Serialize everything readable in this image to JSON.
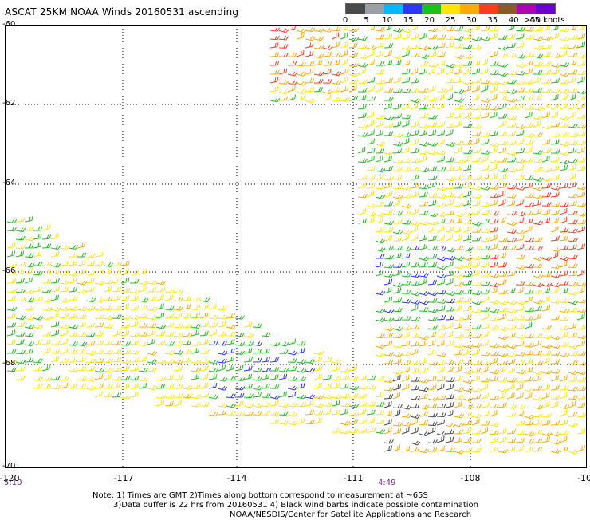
{
  "title": "ASCAT 25KM NOAA Winds 20160531 ascending",
  "legend": {
    "labels": [
      "0",
      "5",
      "10",
      "15",
      "20",
      "25",
      "30",
      "35",
      "40",
      "45",
      ">50 knots"
    ],
    "colors": [
      "#4a4a4a",
      "#9aa0a6",
      "#00b8ff",
      "#2f34ff",
      "#1fbf1f",
      "#ffe600",
      "#ffab00",
      "#ff3b1f",
      "#8b5a2b",
      "#b000b0",
      "#6b00d6"
    ]
  },
  "lat_labels": [
    "-60",
    "-62",
    "-64",
    "-66",
    "-68",
    "-70"
  ],
  "lon_labels": [
    "-120",
    "-117",
    "-114",
    "-111",
    "-108",
    "-10"
  ],
  "times": [
    "5:10",
    "4:49"
  ],
  "notes": {
    "line1": "Note: 1) Times are GMT 2)Times along bottom correspond to measurement at ~65S",
    "line2": "3)Data buffer is 22 hrs from 20160531 4) Black wind barbs indicate possible contamination",
    "line3": "NOAA/NESDIS/Center for Satellite Applications and Research"
  }
}
